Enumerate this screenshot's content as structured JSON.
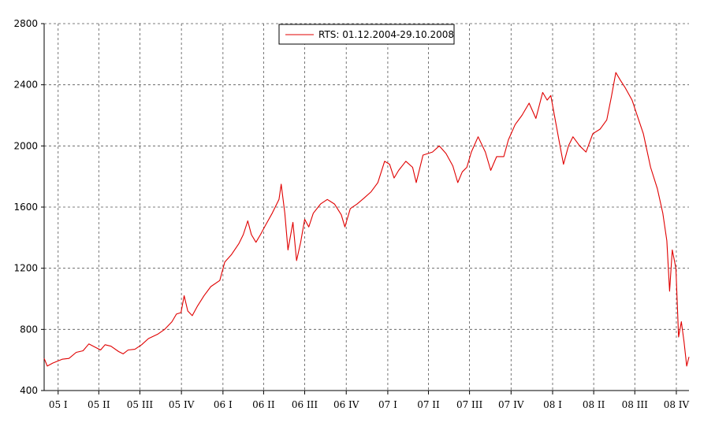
{
  "chart_data": {
    "type": "line",
    "title": "",
    "xlabel": "",
    "ylabel": "",
    "ylim": [
      400,
      2800
    ],
    "y_ticks": [
      400,
      800,
      1200,
      1600,
      2000,
      2400,
      2800
    ],
    "y_tick_labels": [
      "400",
      "800",
      "1200",
      "1600",
      "2000",
      "2400",
      "2800"
    ],
    "x_range": [
      "2004-12-01",
      "2008-10-29"
    ],
    "x_ticks": [
      {
        "date": "2005-01-01",
        "label": "05 I"
      },
      {
        "date": "2005-04-01",
        "label": "05 II"
      },
      {
        "date": "2005-07-01",
        "label": "05 III"
      },
      {
        "date": "2005-10-01",
        "label": "05 IV"
      },
      {
        "date": "2006-01-01",
        "label": "06 I"
      },
      {
        "date": "2006-04-01",
        "label": "06 II"
      },
      {
        "date": "2006-07-01",
        "label": "06 III"
      },
      {
        "date": "2006-10-01",
        "label": "06 IV"
      },
      {
        "date": "2007-01-01",
        "label": "07 I"
      },
      {
        "date": "2007-04-01",
        "label": "07 II"
      },
      {
        "date": "2007-07-01",
        "label": "07 III"
      },
      {
        "date": "2007-10-01",
        "label": "07 IV"
      },
      {
        "date": "2008-01-01",
        "label": "08 I"
      },
      {
        "date": "2008-04-01",
        "label": "08 II"
      },
      {
        "date": "2008-07-01",
        "label": "08 III"
      },
      {
        "date": "2008-10-01",
        "label": "08 IV"
      }
    ],
    "grid": true,
    "legend_position": "top-center",
    "series": [
      {
        "name": "RTS: 01.12.2004-29.10.2008",
        "color": "#e00000",
        "points": [
          [
            "2004-12-01",
            610
          ],
          [
            "2004-12-08",
            560
          ],
          [
            "2004-12-20",
            580
          ],
          [
            "2005-01-10",
            605
          ],
          [
            "2005-01-25",
            610
          ],
          [
            "2005-02-10",
            650
          ],
          [
            "2005-02-25",
            660
          ],
          [
            "2005-03-10",
            705
          ],
          [
            "2005-03-20",
            690
          ],
          [
            "2005-04-05",
            665
          ],
          [
            "2005-04-15",
            700
          ],
          [
            "2005-04-28",
            690
          ],
          [
            "2005-05-15",
            655
          ],
          [
            "2005-05-25",
            640
          ],
          [
            "2005-06-05",
            665
          ],
          [
            "2005-06-20",
            670
          ],
          [
            "2005-07-05",
            700
          ],
          [
            "2005-07-20",
            740
          ],
          [
            "2005-08-10",
            770
          ],
          [
            "2005-08-25",
            800
          ],
          [
            "2005-09-10",
            850
          ],
          [
            "2005-09-20",
            900
          ],
          [
            "2005-09-30",
            910
          ],
          [
            "2005-10-07",
            1020
          ],
          [
            "2005-10-15",
            920
          ],
          [
            "2005-10-25",
            890
          ],
          [
            "2005-11-05",
            950
          ],
          [
            "2005-11-20",
            1020
          ],
          [
            "2005-12-05",
            1080
          ],
          [
            "2005-12-25",
            1120
          ],
          [
            "2006-01-05",
            1240
          ],
          [
            "2006-01-20",
            1290
          ],
          [
            "2006-02-05",
            1360
          ],
          [
            "2006-02-15",
            1420
          ],
          [
            "2006-02-25",
            1510
          ],
          [
            "2006-03-05",
            1420
          ],
          [
            "2006-03-15",
            1370
          ],
          [
            "2006-03-25",
            1420
          ],
          [
            "2006-04-05",
            1480
          ],
          [
            "2006-04-20",
            1560
          ],
          [
            "2006-05-05",
            1650
          ],
          [
            "2006-05-10",
            1750
          ],
          [
            "2006-05-18",
            1560
          ],
          [
            "2006-05-25",
            1320
          ],
          [
            "2006-06-05",
            1500
          ],
          [
            "2006-06-13",
            1250
          ],
          [
            "2006-06-22",
            1370
          ],
          [
            "2006-07-01",
            1520
          ],
          [
            "2006-07-10",
            1470
          ],
          [
            "2006-07-20",
            1560
          ],
          [
            "2006-08-05",
            1620
          ],
          [
            "2006-08-20",
            1650
          ],
          [
            "2006-09-05",
            1620
          ],
          [
            "2006-09-20",
            1550
          ],
          [
            "2006-09-28",
            1470
          ],
          [
            "2006-10-10",
            1590
          ],
          [
            "2006-10-25",
            1620
          ],
          [
            "2006-11-10",
            1660
          ],
          [
            "2006-11-25",
            1700
          ],
          [
            "2006-12-10",
            1760
          ],
          [
            "2006-12-25",
            1900
          ],
          [
            "2007-01-05",
            1880
          ],
          [
            "2007-01-15",
            1790
          ],
          [
            "2007-01-25",
            1840
          ],
          [
            "2007-02-10",
            1900
          ],
          [
            "2007-02-25",
            1860
          ],
          [
            "2007-03-05",
            1760
          ],
          [
            "2007-03-20",
            1940
          ],
          [
            "2007-04-10",
            1960
          ],
          [
            "2007-04-25",
            2000
          ],
          [
            "2007-05-10",
            1950
          ],
          [
            "2007-05-25",
            1870
          ],
          [
            "2007-06-05",
            1760
          ],
          [
            "2007-06-15",
            1830
          ],
          [
            "2007-06-25",
            1860
          ],
          [
            "2007-07-05",
            1960
          ],
          [
            "2007-07-20",
            2060
          ],
          [
            "2007-08-05",
            1960
          ],
          [
            "2007-08-17",
            1840
          ],
          [
            "2007-08-30",
            1930
          ],
          [
            "2007-09-15",
            1930
          ],
          [
            "2007-09-25",
            2040
          ],
          [
            "2007-10-10",
            2140
          ],
          [
            "2007-10-25",
            2200
          ],
          [
            "2007-11-10",
            2280
          ],
          [
            "2007-11-25",
            2180
          ],
          [
            "2007-12-10",
            2350
          ],
          [
            "2007-12-20",
            2300
          ],
          [
            "2007-12-28",
            2330
          ],
          [
            "2008-01-05",
            2200
          ],
          [
            "2008-01-15",
            2040
          ],
          [
            "2008-01-25",
            1880
          ],
          [
            "2008-02-05",
            2000
          ],
          [
            "2008-02-15",
            2060
          ],
          [
            "2008-03-01",
            2000
          ],
          [
            "2008-03-15",
            1960
          ],
          [
            "2008-03-30",
            2080
          ],
          [
            "2008-04-15",
            2110
          ],
          [
            "2008-04-30",
            2170
          ],
          [
            "2008-05-10",
            2320
          ],
          [
            "2008-05-20",
            2480
          ],
          [
            "2008-05-30",
            2430
          ],
          [
            "2008-06-10",
            2380
          ],
          [
            "2008-06-25",
            2300
          ],
          [
            "2008-07-05",
            2210
          ],
          [
            "2008-07-20",
            2080
          ],
          [
            "2008-08-05",
            1860
          ],
          [
            "2008-08-20",
            1720
          ],
          [
            "2008-09-01",
            1560
          ],
          [
            "2008-09-10",
            1380
          ],
          [
            "2008-09-16",
            1050
          ],
          [
            "2008-09-22",
            1320
          ],
          [
            "2008-09-30",
            1200
          ],
          [
            "2008-10-06",
            750
          ],
          [
            "2008-10-12",
            850
          ],
          [
            "2008-10-18",
            720
          ],
          [
            "2008-10-24",
            560
          ],
          [
            "2008-10-29",
            620
          ]
        ]
      }
    ]
  }
}
